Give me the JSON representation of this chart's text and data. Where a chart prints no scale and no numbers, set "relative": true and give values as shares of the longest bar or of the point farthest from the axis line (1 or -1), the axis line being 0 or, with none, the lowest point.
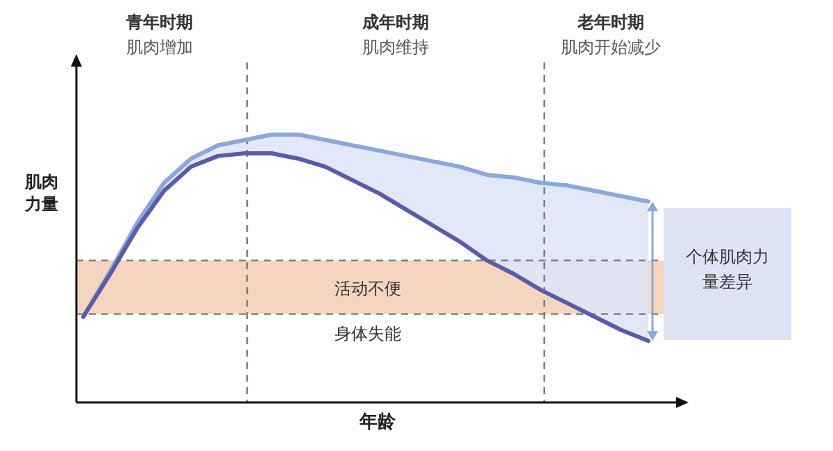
{
  "chart_data": {
    "type": "line",
    "relative": true,
    "xlabel": "年龄",
    "ylabel": "肌肉力量",
    "categories": [
      null,
      null,
      null,
      null,
      null,
      null,
      null,
      null,
      null,
      null,
      null,
      null,
      null,
      null,
      null,
      null,
      null,
      null,
      null,
      null,
      null,
      null
    ],
    "series": [
      {
        "color": "#8aa8dc",
        "values": [
          0.32,
          0.49,
          0.67,
          0.82,
          0.91,
          0.96,
          0.98,
          1.0,
          1.0,
          0.98,
          0.96,
          0.94,
          0.92,
          0.9,
          0.88,
          0.85,
          0.84,
          0.82,
          0.81,
          0.79,
          0.77,
          0.75
        ],
        "upper": [
          0.32,
          0.49,
          0.67,
          0.82,
          0.91,
          0.96,
          0.98,
          1.0,
          1.0,
          0.98,
          0.96,
          0.94,
          0.92,
          0.9,
          0.88,
          0.85,
          0.84,
          0.82,
          0.81,
          0.79,
          0.77,
          0.75
        ],
        "lower": [
          0.32,
          0.48,
          0.65,
          0.79,
          0.88,
          0.92,
          0.93,
          0.93,
          0.91,
          0.88,
          0.83,
          0.78,
          0.72,
          0.66,
          0.6,
          0.53,
          0.48,
          0.42,
          0.37,
          0.32,
          0.27,
          0.23
        ]
      },
      {
        "color": "#5a5ca8",
        "values": [
          0.32,
          0.48,
          0.65,
          0.79,
          0.88,
          0.92,
          0.93,
          0.93,
          0.91,
          0.88,
          0.83,
          0.78,
          0.72,
          0.66,
          0.6,
          0.53,
          0.48,
          0.42,
          0.37,
          0.32,
          0.27,
          0.23
        ]
      }
    ],
    "bands": [
      {
        "axis": "y",
        "from": 0.33,
        "to": 0.53,
        "label": "活动不便",
        "color": "#f6d5bf"
      }
    ],
    "ref_lines": [
      {
        "axis": "y",
        "value": 0.33,
        "label": "身体失能",
        "line_style": "dashed"
      },
      {
        "axis": "y",
        "value": 0.53,
        "line_style": "dashed"
      }
    ],
    "annotations": [
      "青年时期",
      "肌肉增加",
      "成年时期",
      "肌肉维持",
      "老年时期",
      "肌肉开始减少",
      "个体肌肉力量差异"
    ]
  }
}
